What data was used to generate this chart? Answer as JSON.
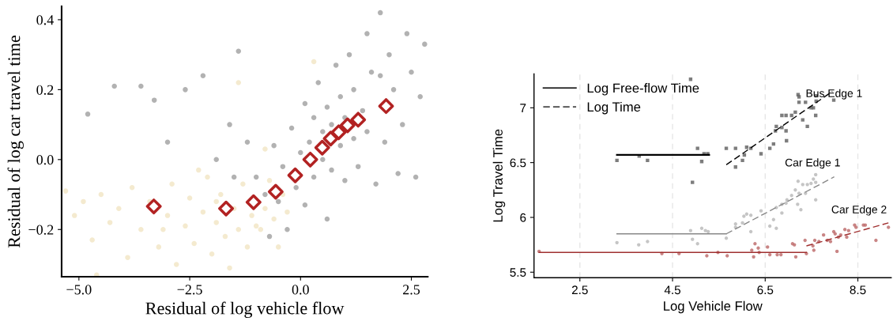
{
  "chart_data": [
    {
      "type": "scatter",
      "xlabel": "Residual of log vehicle flow",
      "ylabel": "Residual of log car travel time",
      "xlim": [
        -5.39,
        2.87
      ],
      "ylim": [
        -0.335,
        0.438
      ],
      "xticks": [
        {
          "value": -5.0,
          "label": "−5.0"
        },
        {
          "value": -2.5,
          "label": "−2.5"
        },
        {
          "value": 0,
          "label": "0.0"
        },
        2.5
      ],
      "yticks": [
        {
          "value": -0.2,
          "label": "−0.2"
        },
        {
          "value": 0,
          "label": "0.0"
        },
        0.2,
        0.4
      ],
      "grid": false,
      "legend": false,
      "series": [
        {
          "marker": "circle",
          "color": "#d9b860",
          "x": [
            -5.3,
            -5.1,
            -4.9,
            -4.7,
            -4.5,
            -4.3,
            -4.1,
            -3.9,
            -3.8,
            -3.6,
            -3.4,
            -3.2,
            -3.0,
            -2.9,
            -2.8,
            -2.6,
            -2.5,
            -2.4,
            -2.2,
            -2.1,
            -2.0,
            -1.9,
            -1.8,
            -1.7,
            -1.6,
            -1.5,
            -1.4,
            -1.3,
            -1.2,
            -1.1,
            -1.0,
            -0.9,
            -0.8,
            -0.7,
            -0.6,
            -0.5,
            -0.4,
            -0.3,
            -1.4,
            -0.8,
            -4.6,
            0.3,
            -2.3,
            -3.1,
            -1.9
          ],
          "values": [
            -0.09,
            -0.16,
            -0.12,
            -0.23,
            -0.1,
            -0.18,
            -0.14,
            -0.28,
            -0.08,
            -0.2,
            -0.12,
            -0.25,
            -0.16,
            -0.07,
            -0.3,
            -0.19,
            -0.11,
            -0.24,
            -0.15,
            -0.05,
            -0.27,
            -0.18,
            -0.1,
            -0.22,
            -0.31,
            -0.14,
            -0.2,
            -0.07,
            -0.25,
            -0.16,
            -0.19,
            -0.2,
            -0.14,
            -0.06,
            -0.17,
            -0.25,
            -0.1,
            -0.15,
            0.22,
            0.03,
            -0.33,
            0.28,
            -0.03,
            -0.2,
            -0.12
          ]
        },
        {
          "marker": "circle",
          "color": "#000000",
          "x": [
            -4.8,
            -4.2,
            -3.6,
            -3.3,
            -3.0,
            -2.6,
            -2.2,
            -1.9,
            -1.6,
            -1.4,
            -1.2,
            -1.0,
            -0.8,
            -0.6,
            -0.5,
            -0.4,
            -0.3,
            -0.2,
            -0.1,
            0.0,
            0.1,
            0.1,
            0.2,
            0.3,
            0.3,
            0.4,
            0.5,
            0.5,
            0.6,
            0.7,
            0.7,
            0.8,
            0.9,
            0.9,
            1.0,
            1.0,
            1.1,
            1.2,
            1.2,
            1.3,
            1.4,
            1.5,
            1.5,
            1.6,
            1.7,
            1.8,
            1.8,
            1.9,
            2.0,
            2.1,
            2.2,
            2.3,
            2.4,
            2.5,
            2.6,
            2.7,
            2.8,
            -0.7,
            -1.5,
            0.6
          ],
          "values": [
            0.13,
            0.21,
            0.21,
            0.17,
            0.05,
            0.2,
            0.24,
            0.0,
            0.1,
            0.31,
            0.05,
            -0.05,
            -0.1,
            0.04,
            -0.12,
            -0.02,
            -0.2,
            0.09,
            -0.08,
            0.02,
            -0.13,
            0.16,
            0.05,
            -0.05,
            0.12,
            0.22,
            0.0,
            0.08,
            0.15,
            -0.03,
            0.1,
            0.27,
            0.04,
            0.18,
            -0.06,
            0.12,
            0.3,
            0.06,
            0.2,
            -0.02,
            0.14,
            0.36,
            0.08,
            0.25,
            -0.07,
            0.24,
            0.42,
            0.05,
            0.3,
            0.2,
            -0.04,
            0.1,
            0.36,
            0.25,
            -0.05,
            0.18,
            0.33,
            -0.22,
            -0.05,
            -0.17
          ]
        },
        {
          "marker": "diamond",
          "color": "#b22222",
          "x": [
            -3.31,
            -1.68,
            -1.06,
            -0.56,
            -0.12,
            0.22,
            0.49,
            0.68,
            0.86,
            1.06,
            1.3,
            1.93
          ],
          "values": [
            -0.134,
            -0.14,
            -0.122,
            -0.092,
            -0.045,
            0.0,
            0.034,
            0.06,
            0.078,
            0.098,
            0.114,
            0.153
          ]
        }
      ]
    },
    {
      "type": "scatter",
      "xlabel": "Log Vehicle Flow",
      "ylabel": "Log Travel Time",
      "xlim": [
        1.51,
        9.22
      ],
      "ylim": [
        5.45,
        7.31
      ],
      "xticks": [
        2.5,
        4.5,
        6.5,
        8.5
      ],
      "yticks": [
        5.5,
        6,
        6.5,
        7
      ],
      "grid": "x",
      "legend": "top left",
      "annotations": [
        "Bus Edge 1",
        "Car Edge 1",
        "Car Edge 2"
      ],
      "series": [
        {
          "marker": "square",
          "color": "#666666",
          "x": [
            3.3,
            3.96,
            3.78,
            4.89,
            5.04,
            5.13,
            5.18,
            5.26,
            4.93,
            5.66,
            5.86,
            6.01,
            5.86,
            6.1,
            6.19,
            6.05,
            6.41,
            6.6,
            6.68,
            6.72,
            6.74,
            6.86,
            6.95,
            6.96,
            6.86,
            6.95,
            7.07,
            7.15,
            7.21,
            7.23,
            7.23,
            7.31,
            7.37,
            7.41,
            7.49,
            7.54,
            7.59,
            7.6,
            7.6,
            7.98
          ],
          "values": [
            6.52,
            6.52,
            6.56,
            7.26,
            6.63,
            6.51,
            6.58,
            6.58,
            6.32,
            6.63,
            6.63,
            6.52,
            6.46,
            6.64,
            6.63,
            6.57,
            6.58,
            6.63,
            6.67,
            6.79,
            6.83,
            6.82,
            6.79,
            6.7,
            6.93,
            6.93,
            6.93,
            6.96,
            7.12,
            7.1,
            7.05,
            6.89,
            7.05,
            6.83,
            7.0,
            7.0,
            6.93,
            7.11,
            7.06,
            7.07
          ]
        },
        {
          "marker": "circle",
          "color": "#bbbbbb",
          "x": [
            3.3,
            3.77,
            3.96,
            4.89,
            4.93,
            5.04,
            5.13,
            5.21,
            5.27,
            5.66,
            5.86,
            5.86,
            6.01,
            6.04,
            6.1,
            6.19,
            6.19,
            6.41,
            6.6,
            6.68,
            6.74,
            6.74,
            6.86,
            6.86,
            6.95,
            6.97,
            7.07,
            7.15,
            7.21,
            7.23,
            7.2,
            7.27,
            7.31,
            7.37,
            7.41,
            7.49,
            7.54,
            7.59,
            7.59,
            7.59
          ],
          "values": [
            5.77,
            5.75,
            5.78,
            5.88,
            5.8,
            5.76,
            5.9,
            5.88,
            5.87,
            5.81,
            5.94,
            5.91,
            5.95,
            6.01,
            6.03,
            6.02,
            5.87,
            6.06,
            5.92,
            5.98,
            5.9,
            6.09,
            6.04,
            6.12,
            6.13,
            6.16,
            6.2,
            6.25,
            6.33,
            6.22,
            6.12,
            6.07,
            6.3,
            6.22,
            6.3,
            6.31,
            6.35,
            6.32,
            6.39,
            6.16
          ]
        },
        {
          "marker": "circle",
          "color": "#c07070",
          "x": [
            1.62,
            4.27,
            4.64,
            5.24,
            5.48,
            5.68,
            6.21,
            6.25,
            6.28,
            6.35,
            6.37,
            6.55,
            6.6,
            6.76,
            6.84,
            7.09,
            7.13,
            7.16,
            7.39,
            7.36,
            7.53,
            7.55,
            7.57,
            7.66,
            7.76,
            7.84,
            7.91,
            7.98,
            8.01,
            8.05,
            8.08,
            8.13,
            8.22,
            8.26,
            8.3,
            8.43,
            8.46,
            8.62,
            8.66,
            8.89,
            9.16
          ],
          "values": [
            5.69,
            5.67,
            5.67,
            5.65,
            5.68,
            5.65,
            5.7,
            5.64,
            5.76,
            5.72,
            5.68,
            5.73,
            5.66,
            5.66,
            5.66,
            5.76,
            5.75,
            5.64,
            5.67,
            5.79,
            5.74,
            5.7,
            5.79,
            5.78,
            5.84,
            5.79,
            5.78,
            5.87,
            5.85,
            5.69,
            5.82,
            5.84,
            5.89,
            5.82,
            5.88,
            5.93,
            5.91,
            5.93,
            5.93,
            5.79,
            5.91
          ]
        },
        {
          "type": "line",
          "name": "Log Free-flow Time",
          "line_style": "solid",
          "color": "#000000",
          "x": [
            3.3,
            5.29
          ],
          "values": [
            6.57,
            6.57
          ]
        },
        {
          "type": "line",
          "name": "Log Time",
          "line_style": "dashed",
          "color": "#000000",
          "x": [
            5.66,
            7.95
          ],
          "values": [
            6.48,
            7.15
          ]
        },
        {
          "type": "line",
          "line_style": "solid",
          "color": "#888888",
          "x": [
            3.3,
            5.66
          ],
          "values": [
            5.85,
            5.85
          ]
        },
        {
          "type": "line",
          "line_style": "dashed",
          "color": "#888888",
          "x": [
            5.66,
            7.99
          ],
          "values": [
            5.85,
            6.37
          ]
        },
        {
          "type": "line",
          "line_style": "solid",
          "color": "#a03030",
          "x": [
            1.62,
            7.39
          ],
          "values": [
            5.68,
            5.68
          ]
        },
        {
          "type": "line",
          "line_style": "dashed",
          "color": "#a03030",
          "x": [
            7.39,
            9.16
          ],
          "values": [
            5.74,
            5.95
          ]
        }
      ]
    }
  ]
}
